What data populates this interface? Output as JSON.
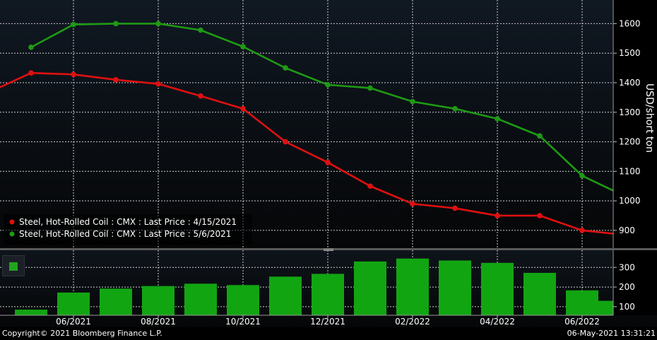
{
  "chart_data": [
    {
      "type": "line",
      "ylabel": "USD/short ton",
      "y_ticks": [
        900,
        1000,
        1100,
        1200,
        1300,
        1400,
        1500,
        1600
      ],
      "ylim": [
        840,
        1680
      ],
      "x_ticks": [
        "06/2021",
        "08/2021",
        "10/2021",
        "12/2021",
        "02/2022",
        "04/2022",
        "06/2022"
      ],
      "grid": true,
      "legend_position": "bottom-left",
      "series": [
        {
          "name": "Steel, Hot-Rolled Coil : CMX : Last Price : 4/15/2021",
          "color": "#e01010",
          "points": [
            {
              "x": "2021-04",
              "y": 1378,
              "marker": false
            },
            {
              "x": "2021-05",
              "y": 1433
            },
            {
              "x": "2021-06",
              "y": 1428
            },
            {
              "x": "2021-07",
              "y": 1410
            },
            {
              "x": "2021-08",
              "y": 1396
            },
            {
              "x": "2021-09",
              "y": 1355
            },
            {
              "x": "2021-10",
              "y": 1312
            },
            {
              "x": "2021-11",
              "y": 1200
            },
            {
              "x": "2021-12",
              "y": 1130
            },
            {
              "x": "2022-01",
              "y": 1050
            },
            {
              "x": "2022-02",
              "y": 990
            },
            {
              "x": "2022-03",
              "y": 975
            },
            {
              "x": "2022-04",
              "y": 950
            },
            {
              "x": "2022-05",
              "y": 950
            },
            {
              "x": "2022-06",
              "y": 900
            },
            {
              "x": "2022-06+",
              "y": 888,
              "marker": false
            }
          ]
        },
        {
          "name": "Steel, Hot-Rolled Coil : CMX : Last Price : 5/6/2021",
          "color": "#1e9a14",
          "points": [
            {
              "x": "2021-05",
              "y": 1520
            },
            {
              "x": "2021-06",
              "y": 1597
            },
            {
              "x": "2021-07",
              "y": 1600
            },
            {
              "x": "2021-08",
              "y": 1600
            },
            {
              "x": "2021-09",
              "y": 1578
            },
            {
              "x": "2021-10",
              "y": 1522
            },
            {
              "x": "2021-11",
              "y": 1450
            },
            {
              "x": "2021-12",
              "y": 1393
            },
            {
              "x": "2022-01",
              "y": 1382
            },
            {
              "x": "2022-02",
              "y": 1336
            },
            {
              "x": "2022-03",
              "y": 1312
            },
            {
              "x": "2022-04",
              "y": 1278
            },
            {
              "x": "2022-05",
              "y": 1220
            },
            {
              "x": "2022-06",
              "y": 1085
            },
            {
              "x": "2022-06+",
              "y": 1030,
              "marker": false
            }
          ]
        }
      ]
    },
    {
      "type": "bar",
      "y_ticks": [
        100,
        200,
        300
      ],
      "ylim": [
        60,
        380
      ],
      "color": "#12a512",
      "categories": [
        "2021-05",
        "2021-06",
        "2021-07",
        "2021-08",
        "2021-09",
        "2021-10",
        "2021-11",
        "2021-12",
        "2022-01",
        "2022-02",
        "2022-03",
        "2022-04",
        "2022-05",
        "2022-06",
        "2022-07"
      ],
      "values": [
        85,
        172,
        192,
        205,
        217,
        210,
        253,
        267,
        330,
        345,
        335,
        323,
        272,
        183,
        130
      ]
    }
  ],
  "footer": {
    "copyright": "Copyright© 2021 Bloomberg Finance L.P.",
    "timestamp": "06-May-2021 13:31:21"
  }
}
